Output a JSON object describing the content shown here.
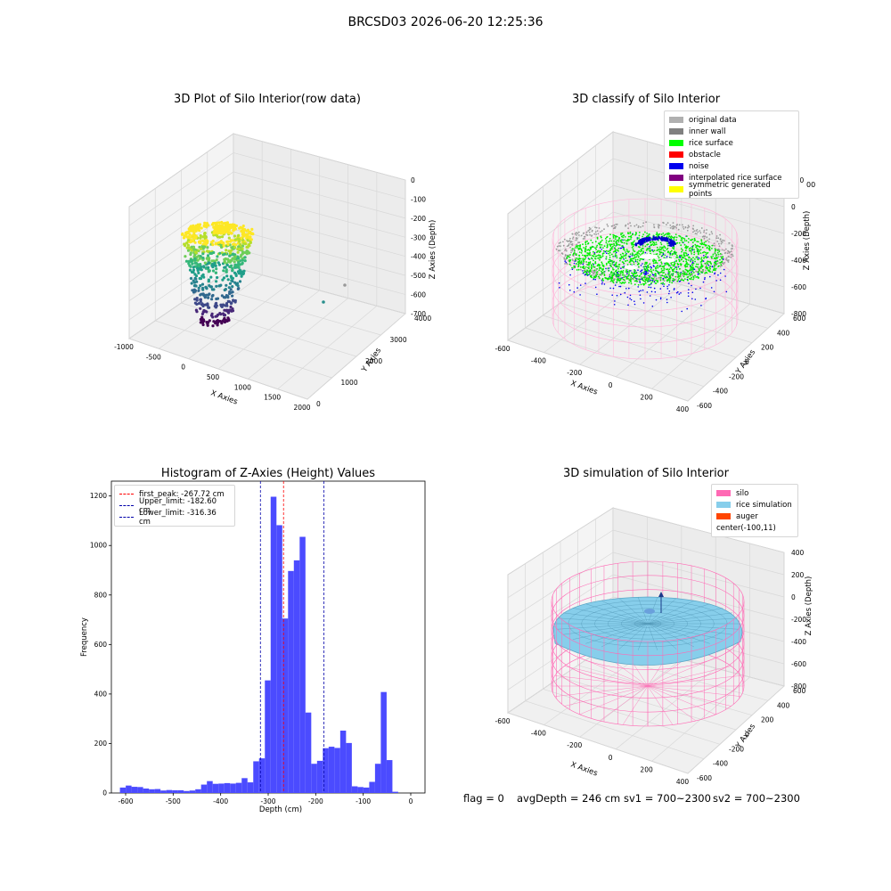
{
  "figure": {
    "suptitle": "BRCSD03 2026-06-20 12:25:36"
  },
  "panels": {
    "raw": {
      "title": "3D Plot of Silo Interior(row data)",
      "xlabel": "X Axies",
      "ylabel": "Y Axies",
      "zlabel": "Z Axies (Depth)",
      "xticks": [
        "-1000",
        "-500",
        "0",
        "500",
        "1000",
        "1500",
        "2000"
      ],
      "yticks": [
        "0",
        "1000",
        "2000",
        "3000",
        "4000"
      ],
      "zticks": [
        "0",
        "-100",
        "-200",
        "-300",
        "-400",
        "-500",
        "-600",
        "-700"
      ]
    },
    "classify": {
      "title": "3D classify of Silo Interior",
      "xlabel": "X Axies",
      "ylabel": "Y Axies",
      "zlabel": "Z Axies (Depth)",
      "xticks": [
        "-600",
        "-400",
        "-200",
        "0",
        "200",
        "400"
      ],
      "yticks": [
        "-600",
        "-400",
        "-200",
        "0",
        "200",
        "400",
        "600"
      ],
      "zticks": [
        "200",
        "0",
        "-200",
        "-400",
        "-600",
        "-800"
      ],
      "ztop": "00",
      "legend": [
        {
          "label": "original data",
          "color": "#b0b0b0"
        },
        {
          "label": "inner wall",
          "color": "#808080"
        },
        {
          "label": "rice surface",
          "color": "#00ff00"
        },
        {
          "label": "obstacle",
          "color": "#ff0000"
        },
        {
          "label": "noise",
          "color": "#0000ee"
        },
        {
          "label": "interpolated rice surface",
          "color": "#800080"
        },
        {
          "label": "symmetric generated points",
          "color": "#ffff00"
        }
      ]
    },
    "simulation": {
      "title": "3D simulation of Silo Interior",
      "xlabel": "X Axies",
      "ylabel": "Y Axies",
      "zlabel": "Z Axies (Depth)",
      "xticks": [
        "-600",
        "-400",
        "-200",
        "0",
        "200",
        "400"
      ],
      "yticks": [
        "-600",
        "-400",
        "-200",
        "0",
        "200",
        "400",
        "600"
      ],
      "zticks": [
        "400",
        "200",
        "0",
        "-200",
        "-400",
        "-600",
        "-800"
      ],
      "legend": [
        {
          "label": "silo",
          "color": "#ff69b4"
        },
        {
          "label": "rice simulation",
          "color": "#87ceeb"
        },
        {
          "label": "auger",
          "color": "#ff4500"
        },
        {
          "label": "center(-100,11)",
          "color": ""
        }
      ]
    }
  },
  "footer": {
    "flag": "flag = 0",
    "avg": "avgDepth = 246 cm",
    "sv1": "sv1 = 700~2300",
    "sv2": "sv2 = 700~2300"
  },
  "chart_data": {
    "type": "bar",
    "title": "Histogram of Z-Axies (Height) Values",
    "xlabel": "Depth (cm)",
    "ylabel": "Frequency",
    "xlim": [
      -630,
      30
    ],
    "ylim": [
      0,
      1260
    ],
    "xticks": [
      -600,
      -500,
      -400,
      -300,
      -200,
      -100,
      0
    ],
    "yticks": [
      0,
      200,
      400,
      600,
      800,
      1000,
      1200
    ],
    "bin_width": 12.2,
    "bin_start": -612,
    "color": "#4b4bff",
    "values": [
      22,
      30,
      25,
      24,
      18,
      15,
      16,
      10,
      12,
      11,
      11,
      8,
      10,
      15,
      34,
      48,
      37,
      38,
      40,
      38,
      41,
      60,
      43,
      128,
      140,
      455,
      1197,
      1082,
      705,
      897,
      940,
      1035,
      325,
      118,
      130,
      181,
      187,
      182,
      252,
      202,
      27,
      24,
      22,
      45,
      118,
      408,
      133,
      5
    ],
    "lines": [
      {
        "label": "first_peak: -267.72 cm",
        "x": -267.72,
        "color": "#ff0000"
      },
      {
        "label": "Upper_limit: -182.60 cm",
        "x": -182.6,
        "color": "#0000aa"
      },
      {
        "label": "Lower_limit: -316.36 cm",
        "x": -316.36,
        "color": "#0000aa"
      }
    ],
    "legend_position": "upper-left"
  }
}
